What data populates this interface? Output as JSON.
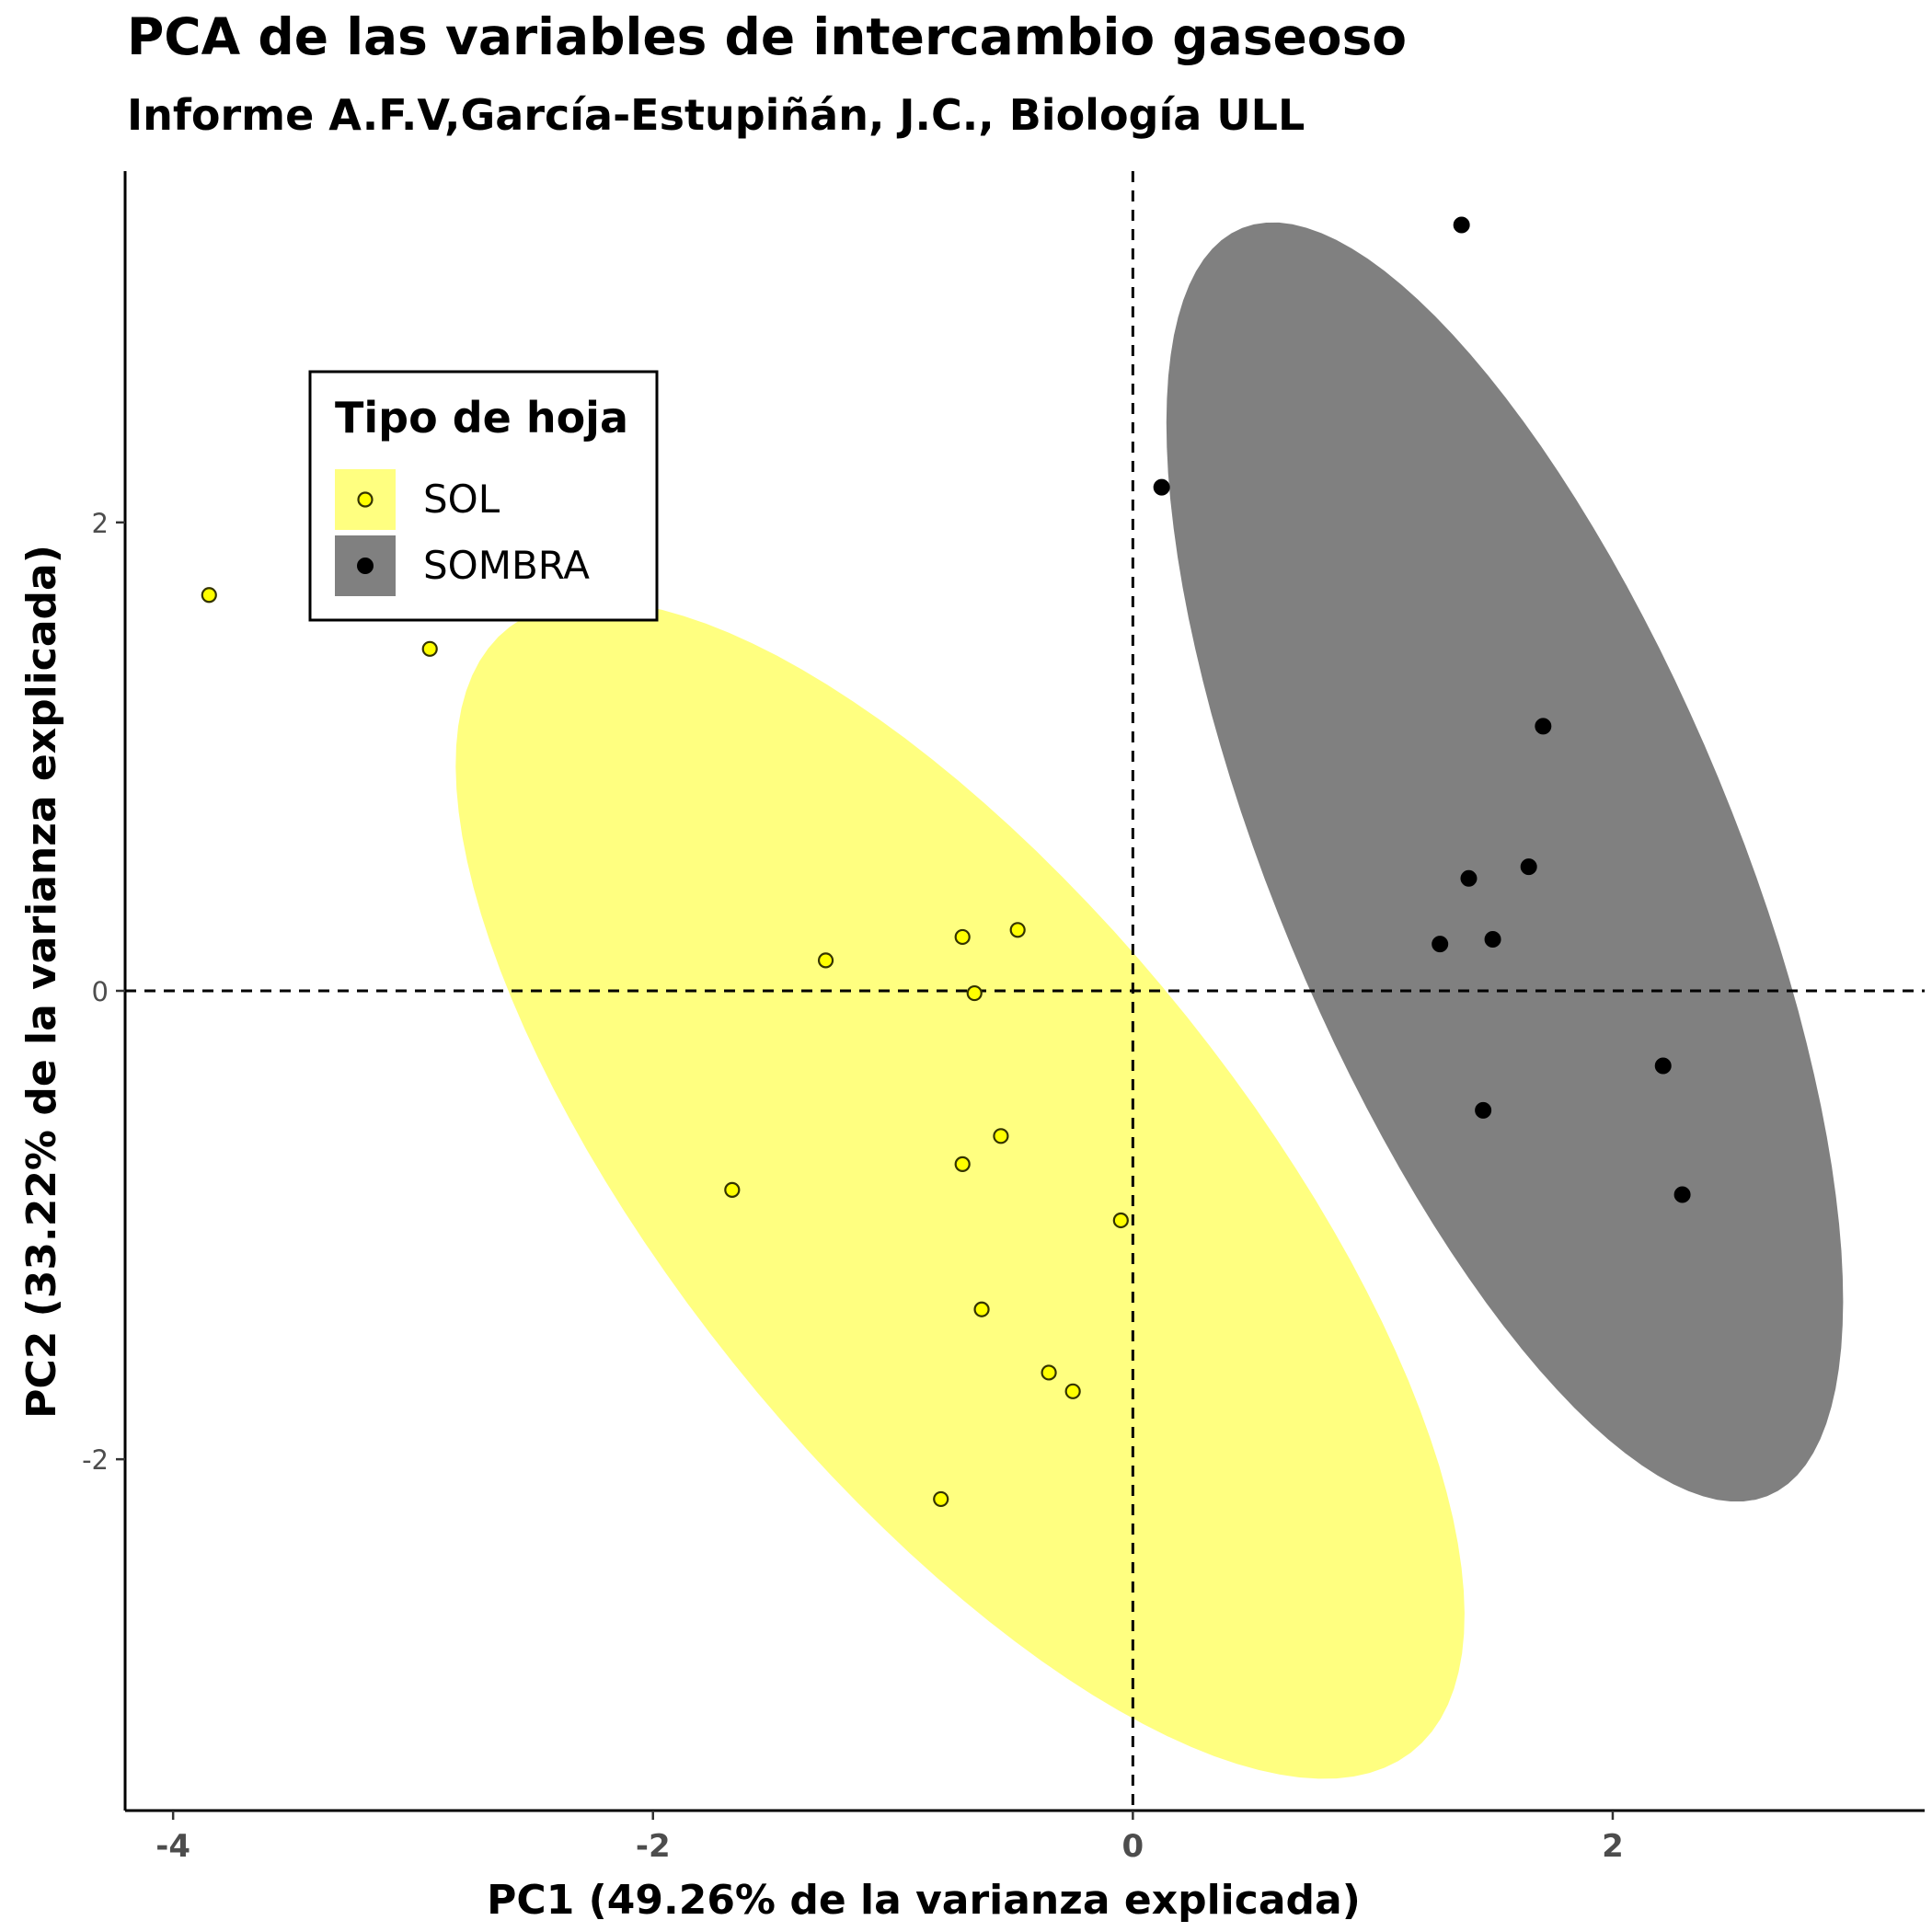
{
  "chart_data": {
    "type": "scatter",
    "title": "PCA de las variables de intercambio gaseoso",
    "subtitle": "Informe A.F.V,García-Estupiñán, J.C., Biología ULL",
    "xlabel": "PC1 (49.26% de la varianza explicada)",
    "ylabel": "PC2 (33.22% de la varianza explicada)",
    "xlim": [
      -4.2,
      3.3
    ],
    "ylim": [
      -3.5,
      3.5
    ],
    "x_ticks": [
      -4,
      -2,
      0,
      2
    ],
    "x_tick_labels": [
      "-4",
      "-2",
      "0",
      "2"
    ],
    "y_ticks": [
      -2,
      0,
      2
    ],
    "y_tick_labels": [
      "-2",
      "0",
      "2"
    ],
    "grid": false,
    "reference_lines": {
      "x": 0,
      "y": 0,
      "style": "dashed"
    },
    "legend": {
      "title": "Tipo de hoja",
      "position": "top-left"
    },
    "series": [
      {
        "name": "SOL",
        "fill": "#ffff00",
        "ellipse_fill": "#ffff80",
        "point_style": "hollow-yellow",
        "ellipse": {
          "center": [
            -0.72,
            -0.85
          ],
          "angle_deg": 128,
          "semi_major": 3.05,
          "semi_minor": 1.2
        },
        "points": [
          {
            "x": -3.85,
            "y": 1.69
          },
          {
            "x": -2.93,
            "y": 1.46
          },
          {
            "x": -1.67,
            "y": -0.85
          },
          {
            "x": -1.28,
            "y": 0.13
          },
          {
            "x": -0.71,
            "y": 0.23
          },
          {
            "x": -0.48,
            "y": 0.26
          },
          {
            "x": -0.66,
            "y": -0.01
          },
          {
            "x": -0.55,
            "y": -0.62
          },
          {
            "x": -0.71,
            "y": -0.74
          },
          {
            "x": -0.05,
            "y": -0.98
          },
          {
            "x": -0.63,
            "y": -1.36
          },
          {
            "x": -0.35,
            "y": -1.63
          },
          {
            "x": -0.25,
            "y": -1.71
          },
          {
            "x": -0.8,
            "y": -2.17
          }
        ]
      },
      {
        "name": "SOMBRA",
        "fill": "#808080",
        "ellipse_fill": "#808080",
        "point_style": "solid-black",
        "ellipse": {
          "center": [
            1.55,
            0.55
          ],
          "angle_deg": 112,
          "semi_major": 2.92,
          "semi_minor": 0.96
        },
        "points": [
          {
            "x": 1.37,
            "y": 3.27
          },
          {
            "x": 0.12,
            "y": 2.15
          },
          {
            "x": 1.71,
            "y": 1.13
          },
          {
            "x": 1.65,
            "y": 0.53
          },
          {
            "x": 1.4,
            "y": 0.48
          },
          {
            "x": 1.28,
            "y": 0.2
          },
          {
            "x": 1.5,
            "y": 0.22
          },
          {
            "x": 2.21,
            "y": -0.32
          },
          {
            "x": 1.46,
            "y": -0.51
          },
          {
            "x": 2.29,
            "y": -0.87
          }
        ]
      }
    ]
  }
}
